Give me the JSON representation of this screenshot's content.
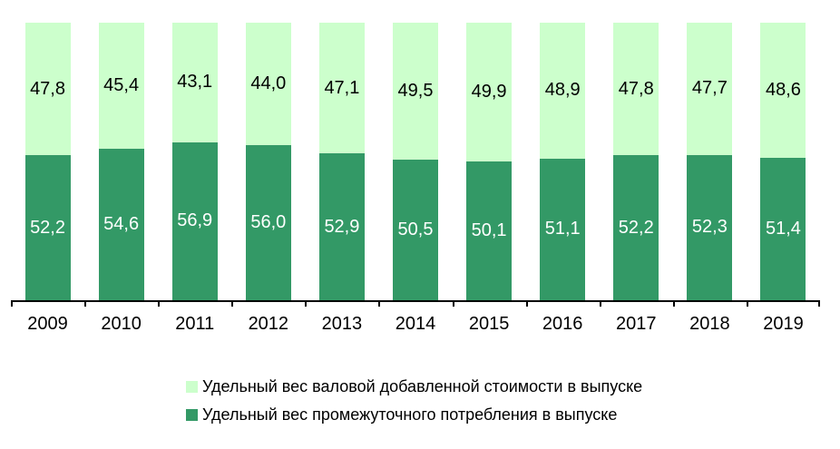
{
  "chart_data": {
    "type": "bar",
    "stacked": true,
    "orientation": "vertical",
    "title": "",
    "xlabel": "",
    "ylabel": "",
    "ylim": [
      0,
      100
    ],
    "grid": false,
    "legend_position": "bottom-left",
    "axis_color": "#000000",
    "background_color": "#FFFFFF",
    "value_label_decimal_separator": ",",
    "categories": [
      "2009",
      "2010",
      "2011",
      "2012",
      "2013",
      "2014",
      "2015",
      "2016",
      "2017",
      "2018",
      "2019"
    ],
    "series": [
      {
        "name": "Удельный вес валовой добавленной стоимости в выпуске",
        "color": "#CCFFCC",
        "label_color": "#000000",
        "stack_position": "top",
        "values": [
          47.8,
          45.4,
          43.1,
          44.0,
          47.1,
          49.5,
          49.9,
          48.9,
          47.8,
          47.7,
          48.6
        ],
        "value_labels": [
          "47,8",
          "45,4",
          "43,1",
          "44,0",
          "47,1",
          "49,5",
          "49,9",
          "48,9",
          "47,8",
          "47,7",
          "48,6"
        ]
      },
      {
        "name": "Удельный вес промежуточного потребления в выпуске",
        "color": "#339966",
        "label_color": "#FFFFFF",
        "stack_position": "bottom",
        "values": [
          52.2,
          54.6,
          56.9,
          56.0,
          52.9,
          50.5,
          50.1,
          51.1,
          52.2,
          52.3,
          51.4
        ],
        "value_labels": [
          "52,2",
          "54,6",
          "56,9",
          "56,0",
          "52,9",
          "50,5",
          "50,1",
          "51,1",
          "52,2",
          "52,3",
          "51,4"
        ]
      }
    ]
  }
}
